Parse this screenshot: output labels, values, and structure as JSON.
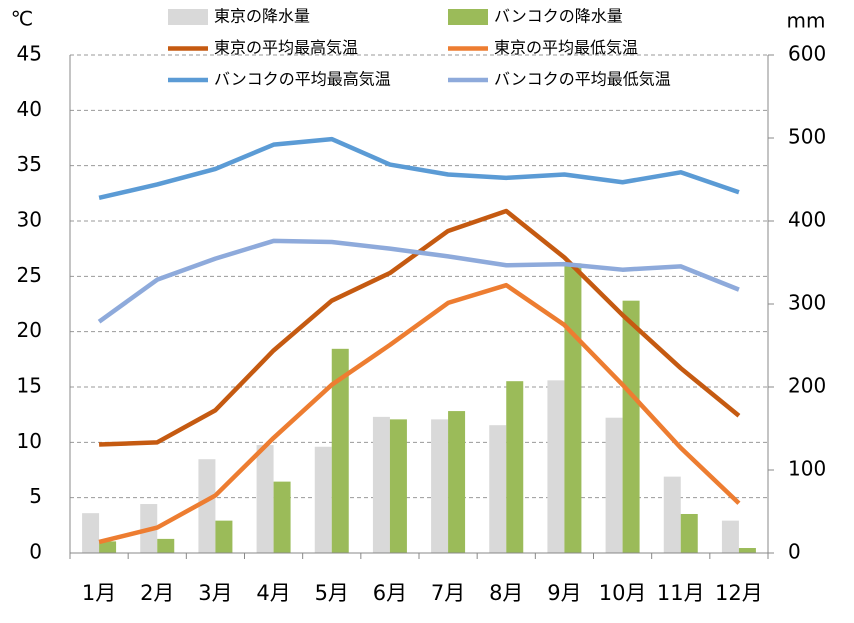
{
  "chart_data": {
    "type": "combo",
    "y_label": "℃",
    "y2_label": "mm",
    "categories": [
      "1月",
      "2月",
      "3月",
      "4月",
      "5月",
      "6月",
      "7月",
      "8月",
      "9月",
      "10月",
      "11月",
      "12月"
    ],
    "ylim": [
      0,
      45
    ],
    "yticks": [
      0,
      5,
      10,
      15,
      20,
      25,
      30,
      35,
      40,
      45
    ],
    "y2lim": [
      0,
      600
    ],
    "y2ticks": [
      0,
      100,
      200,
      300,
      400,
      500,
      600
    ],
    "grid": true,
    "legend": "top",
    "series": [
      {
        "name": "東京の降水量",
        "type": "bar",
        "axis": "y2",
        "color": "#d9d9d9",
        "values": [
          48,
          59,
          113,
          130,
          128,
          164,
          161,
          154,
          208,
          163,
          92,
          39
        ]
      },
      {
        "name": "バンコクの降水量",
        "type": "bar",
        "axis": "y2",
        "color": "#9bbb59",
        "values": [
          14,
          17,
          39,
          86,
          246,
          161,
          171,
          207,
          349,
          304,
          47,
          6
        ]
      },
      {
        "name": "東京の平均最高気温",
        "type": "line",
        "color": "#c55a11",
        "values": [
          9.8,
          10.0,
          12.9,
          18.3,
          22.8,
          25.3,
          29.1,
          30.9,
          26.7,
          21.5,
          16.7,
          12.4
        ]
      },
      {
        "name": "東京の平均最低気温",
        "type": "line",
        "color": "#ed7d31",
        "values": [
          1.0,
          2.3,
          5.2,
          10.4,
          15.2,
          18.8,
          22.6,
          24.2,
          20.6,
          15.2,
          9.5,
          4.5
        ]
      },
      {
        "name": "バンコクの平均最高気温",
        "type": "line",
        "color": "#5b9bd5",
        "values": [
          32.1,
          33.3,
          34.7,
          36.9,
          37.4,
          35.1,
          34.2,
          33.9,
          34.2,
          33.5,
          34.4,
          32.6
        ]
      },
      {
        "name": "バンコクの平均最低気温",
        "type": "line",
        "color": "#8eaadb",
        "values": [
          20.9,
          24.7,
          26.6,
          28.2,
          28.1,
          27.5,
          26.8,
          26.0,
          26.1,
          25.6,
          25.9,
          23.8
        ]
      }
    ]
  }
}
